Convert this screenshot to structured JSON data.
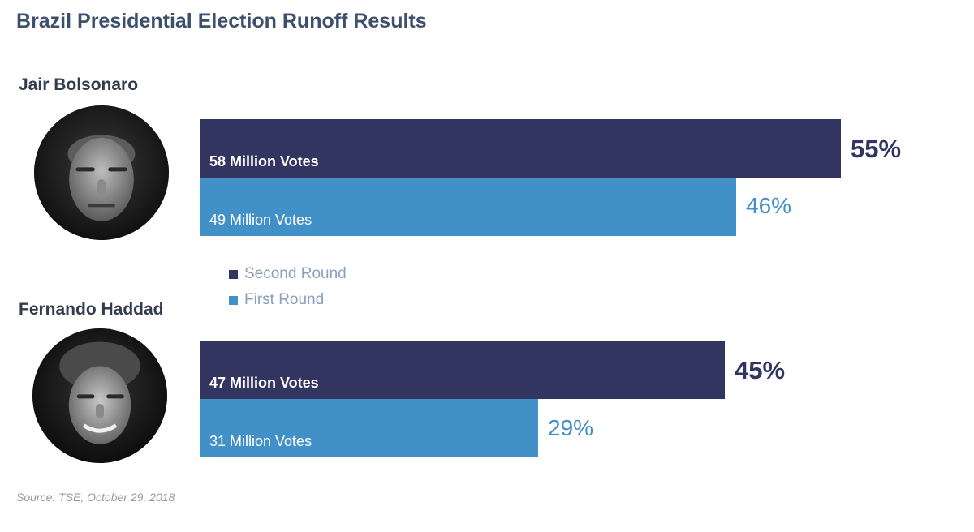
{
  "title": "Brazil Presidential Election Runoff Results",
  "source": "Source: TSE, October 29, 2018",
  "colors": {
    "second_round": "#313560",
    "first_round": "#4290c8",
    "title": "#3d4f6b",
    "legend_text": "#8aa0bc"
  },
  "legend": [
    {
      "label": "Second Round",
      "color": "#313560"
    },
    {
      "label": "First Round",
      "color": "#4290c8"
    }
  ],
  "candidates": [
    {
      "name": "Jair Bolsonaro",
      "photo": "bolsonaro-portrait"
    },
    {
      "name": "Fernando Haddad",
      "photo": "haddad-portrait"
    }
  ],
  "chart_data": {
    "type": "bar",
    "orientation": "horizontal",
    "categories": [
      "Jair Bolsonaro",
      "Fernando Haddad"
    ],
    "series": [
      {
        "name": "Second Round",
        "values": [
          55,
          45
        ],
        "pct_labels": [
          "55%",
          "45%"
        ],
        "vote_labels": [
          "58 Million Votes",
          "47 Million Votes"
        ]
      },
      {
        "name": "First Round",
        "values": [
          46,
          29
        ],
        "pct_labels": [
          "46%",
          "29%"
        ],
        "vote_labels": [
          "49 Million Votes",
          "31 Million Votes"
        ]
      }
    ],
    "value_unit": "%",
    "legend_position": "center-left",
    "grid": false
  }
}
